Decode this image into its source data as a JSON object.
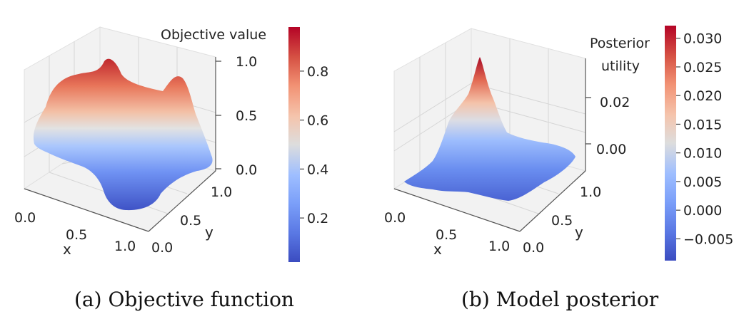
{
  "chart_data": [
    {
      "type": "surface3d",
      "caption": "(a) Objective function",
      "xlabel": "x",
      "ylabel": "y",
      "zlabel": "",
      "xticks": [
        "0.0",
        "0.5",
        "1.0"
      ],
      "yticks": [
        "0.0",
        "0.5",
        "1.0"
      ],
      "zticks": [
        "0.0",
        "0.5",
        "1.0"
      ],
      "xlim": [
        0,
        1
      ],
      "ylim": [
        0,
        1
      ],
      "zlim": [
        0,
        1
      ],
      "colorbar": {
        "title": "Objective value",
        "ticks": [
          "0.2",
          "0.4",
          "0.6",
          "0.8"
        ],
        "tick_values": [
          0.2,
          0.4,
          0.6,
          0.8
        ],
        "range": [
          0.02,
          0.98
        ],
        "colormap": "coolwarm"
      }
    },
    {
      "type": "surface3d",
      "caption": "(b) Model posterior",
      "xlabel": "x",
      "ylabel": "y",
      "zlabel": "",
      "xticks": [
        "0.0",
        "0.5",
        "1.0"
      ],
      "yticks": [
        "0.0",
        "0.5",
        "1.0"
      ],
      "zticks": [
        "0.00",
        "0.02"
      ],
      "xlim": [
        0,
        1
      ],
      "ylim": [
        0,
        1
      ],
      "zlim": [
        -0.008,
        0.033
      ],
      "colorbar": {
        "title_lines": [
          "Posterior",
          "utility"
        ],
        "ticks": [
          "0.030",
          "0.025",
          "0.020",
          "0.015",
          "0.010",
          "0.005",
          "0.000",
          "−0.005"
        ],
        "tick_values": [
          0.03,
          0.025,
          0.02,
          0.015,
          0.01,
          0.005,
          0.0,
          -0.005
        ],
        "range": [
          -0.0088,
          0.0322
        ],
        "colormap": "coolwarm"
      }
    }
  ],
  "colors": {
    "cold": "#3b4cc0",
    "neutral": "#dddddd",
    "hot": "#b40426"
  }
}
